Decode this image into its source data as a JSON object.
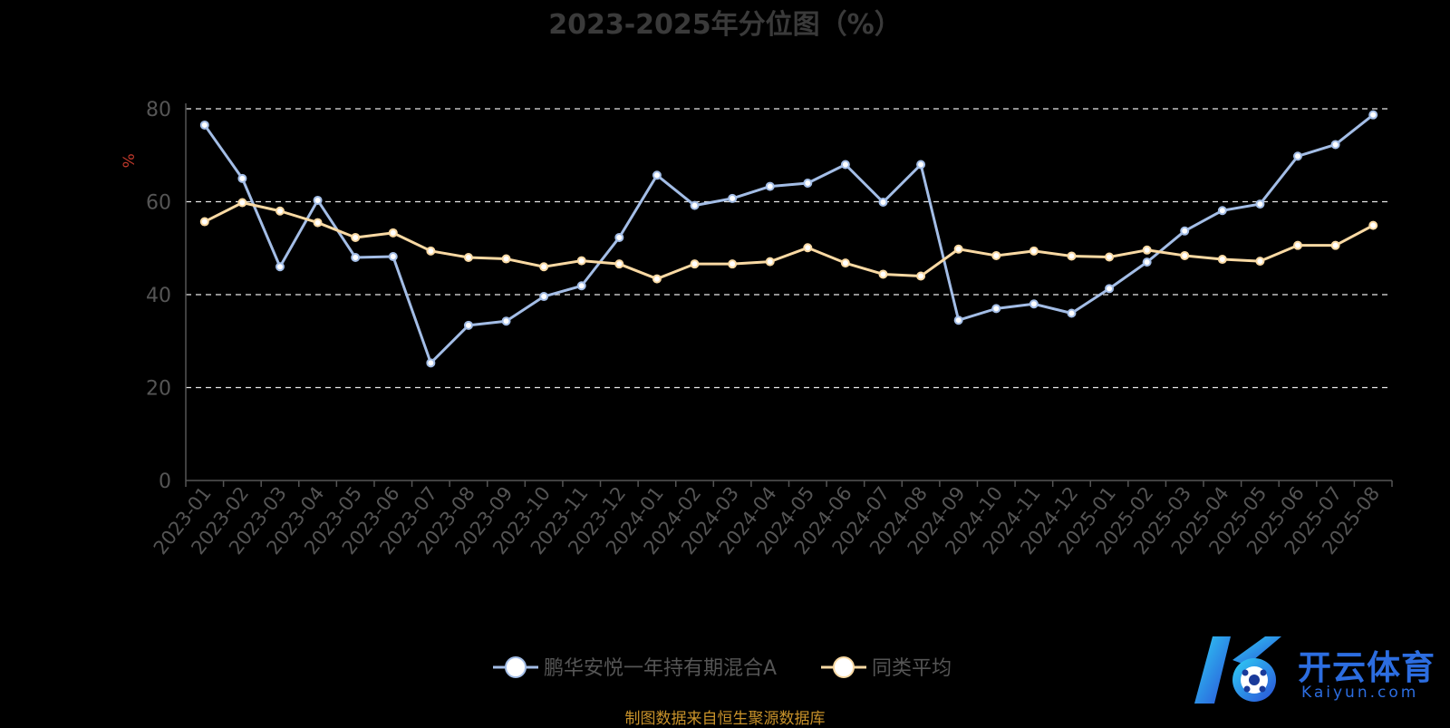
{
  "chart_data": {
    "type": "line",
    "title": "2023-2025年分位图（%）",
    "ylabel": "%",
    "ylim": [
      0,
      80
    ],
    "yticks": [
      0,
      20,
      40,
      60,
      80
    ],
    "grid": "horizontal-dashed",
    "legend_position": "bottom-center",
    "categories": [
      "2023-01",
      "2023-02",
      "2023-03",
      "2023-04",
      "2023-05",
      "2023-06",
      "2023-07",
      "2023-08",
      "2023-09",
      "2023-10",
      "2023-11",
      "2023-12",
      "2024-01",
      "2024-02",
      "2024-03",
      "2024-04",
      "2024-05",
      "2024-06",
      "2024-07",
      "2024-08",
      "2024-09",
      "2024-10",
      "2024-11",
      "2024-12",
      "2025-01",
      "2025-02",
      "2025-03",
      "2025-04",
      "2025-05",
      "2025-06",
      "2025-07",
      "2025-08"
    ],
    "series": [
      {
        "name": "鹏华安悦一年持有期混合A",
        "color": "#a3bde6",
        "values": [
          76.5,
          65,
          46,
          60.3,
          48,
          48.2,
          25.3,
          33.4,
          34.3,
          39.6,
          41.9,
          52.3,
          65.7,
          59.2,
          60.7,
          63.3,
          64,
          68,
          59.9,
          68,
          34.5,
          37,
          38,
          36,
          41.3,
          47,
          53.7,
          58.1,
          59.5,
          69.8,
          72.3,
          78.7
        ]
      },
      {
        "name": "同类平均",
        "color": "#f9d9a3",
        "values": [
          55.7,
          59.8,
          58,
          55.5,
          52.3,
          53.3,
          49.4,
          48,
          47.7,
          46,
          47.3,
          46.6,
          43.4,
          46.6,
          46.6,
          47.1,
          50.1,
          46.8,
          44.4,
          44,
          49.8,
          48.4,
          49.4,
          48.3,
          48.1,
          49.6,
          48.4,
          47.6,
          47.2,
          50.6,
          50.6,
          54.9
        ]
      }
    ]
  },
  "footer": {
    "source_note": "制图数据来自恒生聚源数据库",
    "logo_text": "开云体育",
    "logo_sub": "Kaiyun.com"
  }
}
